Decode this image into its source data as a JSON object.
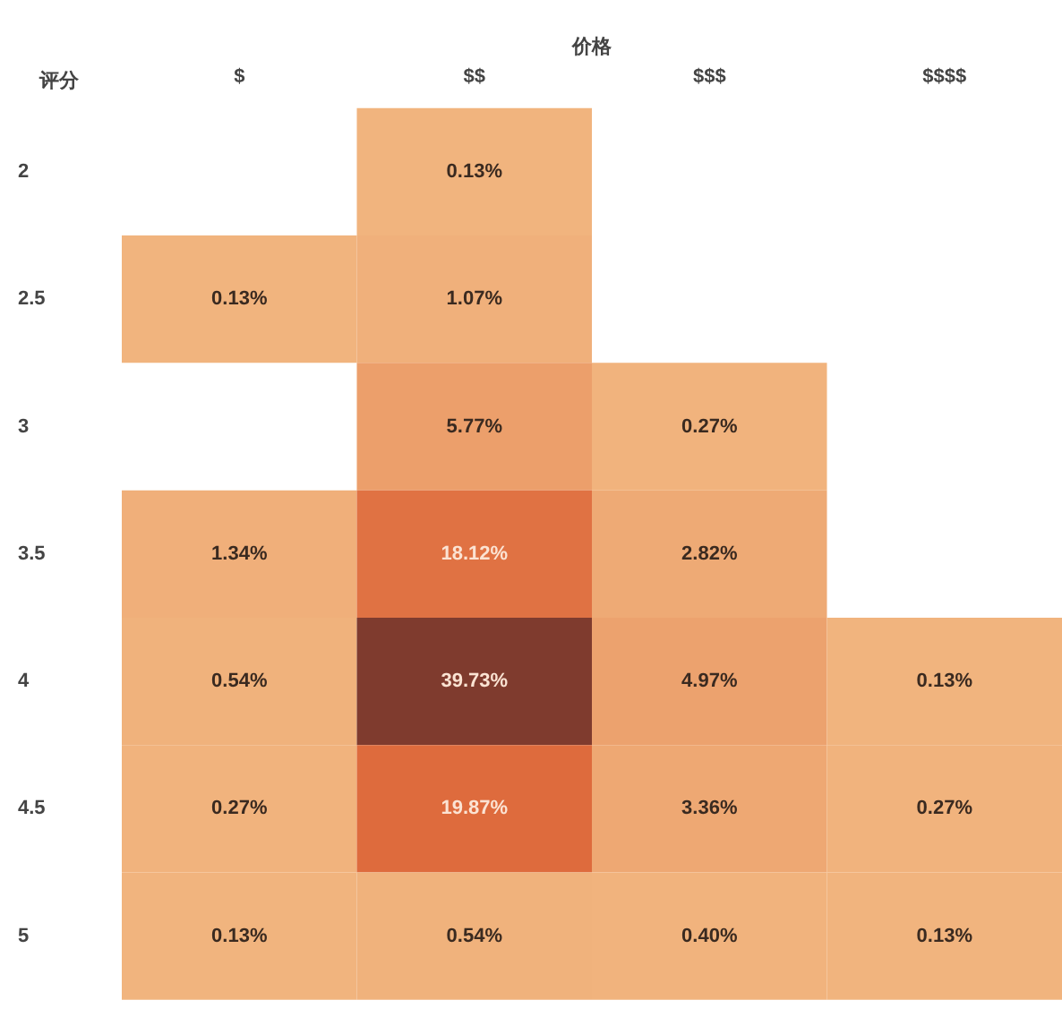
{
  "chart_data": {
    "type": "heatmap",
    "xlabel": "价格",
    "ylabel": "评分",
    "categories": [
      "$",
      "$$",
      "$$$",
      "$$$$"
    ],
    "y_categories": [
      "2",
      "2.5",
      "3",
      "3.5",
      "4",
      "4.5",
      "5"
    ],
    "cells": [
      [
        null,
        0.13,
        null,
        null
      ],
      [
        0.13,
        1.07,
        null,
        null
      ],
      [
        null,
        5.77,
        0.27,
        null
      ],
      [
        1.34,
        18.12,
        2.82,
        null
      ],
      [
        0.54,
        39.73,
        4.97,
        0.13
      ],
      [
        0.27,
        19.87,
        3.36,
        0.27
      ],
      [
        0.13,
        0.54,
        0.4,
        0.13
      ]
    ],
    "cell_labels": [
      [
        null,
        "0.13%",
        null,
        null
      ],
      [
        "0.13%",
        "1.07%",
        null,
        null
      ],
      [
        null,
        "5.77%",
        "0.27%",
        null
      ],
      [
        "1.34%",
        "18.12%",
        "2.82%",
        null
      ],
      [
        "0.54%",
        "39.73%",
        "4.97%",
        "0.13%"
      ],
      [
        "0.27%",
        "19.87%",
        "3.36%",
        "0.27%"
      ],
      [
        "0.13%",
        "0.54%",
        "0.40%",
        "0.13%"
      ]
    ]
  }
}
